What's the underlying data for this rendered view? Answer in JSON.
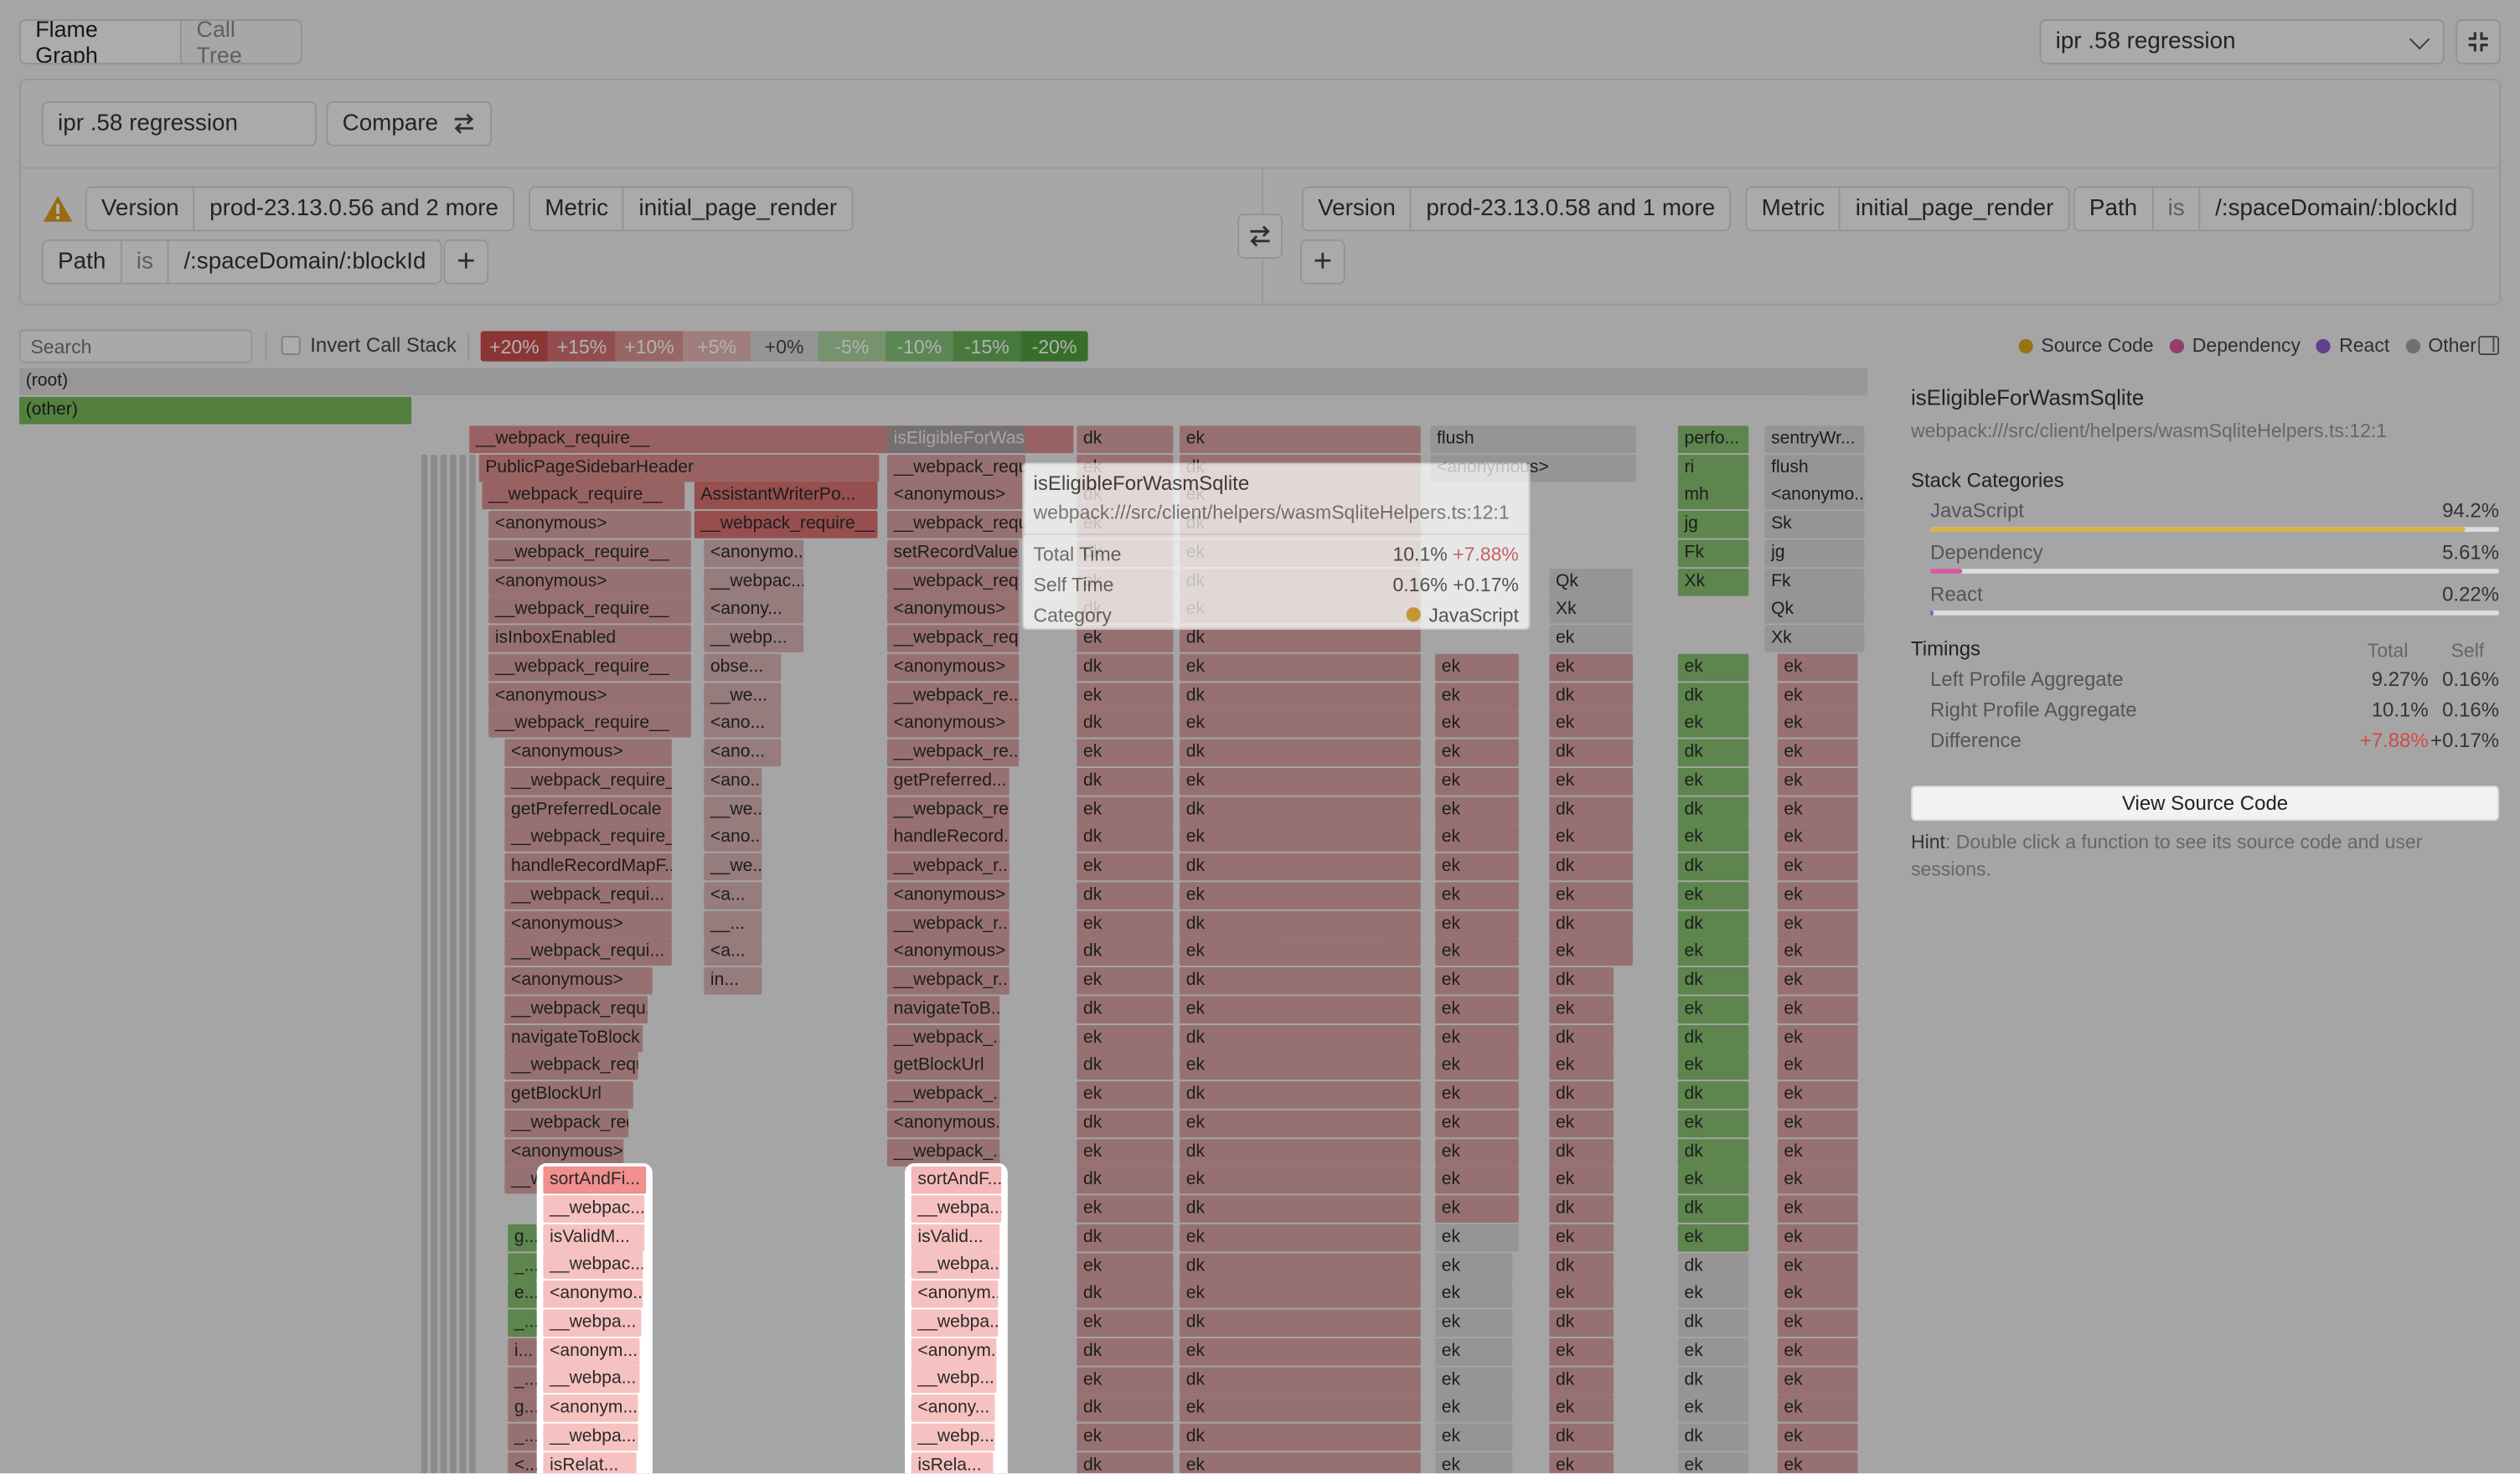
{
  "tabs": {
    "flame_graph": "Flame Graph",
    "call_tree": "Call Tree"
  },
  "header_select": "ipr .58 regression",
  "compare": {
    "name": "ipr .58 regression",
    "button": "Compare"
  },
  "left_filter": {
    "version_key": "Version",
    "version_value": "prod-23.13.0.56 and 2 more",
    "metric_key": "Metric",
    "metric_value": "initial_page_render",
    "path_key": "Path",
    "path_op": "is",
    "path_value": "/:spaceDomain/:blockId"
  },
  "right_filter": {
    "version_key": "Version",
    "version_value": "prod-23.13.0.58 and 1 more",
    "metric_key": "Metric",
    "metric_value": "initial_page_render",
    "path_key": "Path",
    "path_op": "is",
    "path_value": "/:spaceDomain/:blockId"
  },
  "toolbar": {
    "search_placeholder": "Search",
    "invert_label": "Invert Call Stack",
    "scale": [
      {
        "label": "+20%",
        "color": "#c84c4c"
      },
      {
        "label": "+15%",
        "color": "#d27070"
      },
      {
        "label": "+10%",
        "color": "#dc9292"
      },
      {
        "label": "+5%",
        "color": "#e3b6b4"
      },
      {
        "label": "+0%",
        "color": "#d6d6d6"
      },
      {
        "label": "-5%",
        "color": "#a9d1a0"
      },
      {
        "label": "-10%",
        "color": "#86c07a"
      },
      {
        "label": "-15%",
        "color": "#66ae58"
      },
      {
        "label": "-20%",
        "color": "#4f9e40"
      }
    ],
    "legend": [
      {
        "label": "Source Code",
        "color": "#d9a520"
      },
      {
        "label": "Dependency",
        "color": "#d35aa0"
      },
      {
        "label": "React",
        "color": "#8b5cd0"
      },
      {
        "label": "Other",
        "color": "#a0a0a0"
      }
    ]
  },
  "flame": {
    "root": "(root)",
    "other": "(other)",
    "col1": [
      "__webpack_require__",
      "PublicPageSidebarHeader",
      "__webpack_require__",
      "<anonymous>",
      "__webpack_require__",
      "<anonymous>",
      "__webpack_require__",
      "isInboxEnabled",
      "__webpack_require__",
      "<anonymous>",
      "__webpack_require__",
      "<anonymous>",
      "__webpack_require__",
      "getPreferredLocale",
      "__webpack_require__",
      "handleRecordMapF...",
      "__webpack_requi...",
      "<anonymous>",
      "__webpack_requi...",
      "<anonymous>",
      "__webpack_requ...",
      "navigateToBlock",
      "__webpack_requ...",
      "getBlockUrl",
      "__webpack_req...",
      "<anonymous>",
      "__webpack_req..."
    ],
    "col2": [
      "AssistantWriterPo...",
      "__webpack_require__",
      "<anonymo...",
      "__webpac...",
      "<anony...",
      "__webp...",
      "obse...",
      "__we...",
      "<ano...",
      "<ano...",
      "<ano...",
      "__we...",
      "<ano...",
      "__we...",
      "<a...",
      "__...",
      "<a...",
      "in..."
    ],
    "col3": [
      "isEligibleForWasm...",
      "__webpack_requ...",
      "<anonymous>",
      "__webpack_requ...",
      "setRecordValue",
      "__webpack_req...",
      "<anonymous>",
      "__webpack_req...",
      "<anonymous>",
      "__webpack_re...",
      "<anonymous>",
      "__webpack_re...",
      "getPreferred...",
      "__webpack_re...",
      "handleRecord...",
      "__webpack_r...",
      "<anonymous>",
      "__webpack_r...",
      "<anonymous>",
      "__webpack_r...",
      "navigateToB...",
      "__webpack_...",
      "getBlockUrl",
      "__webpack_...",
      "<anonymous...",
      "__webpack_..."
    ],
    "hl1": [
      "sortAndFi...",
      "__webpac...",
      "isValidM...",
      "__webpac...",
      "<anonymo...",
      "__webpa...",
      "<anonym...",
      "__webpa...",
      "<anonym...",
      "__webpa...",
      "isRelat..."
    ],
    "hl1_side": [
      "g...",
      "_...",
      "e...",
      "_...",
      "i...",
      "_...",
      "g...",
      "_...",
      "<...",
      "_...",
      "<..."
    ],
    "hl2": [
      "sortAndF...",
      "__webpa...",
      "isValid...",
      "__webpa...",
      "<anonym...",
      "__webpa...",
      "<anonym...",
      "__webp...",
      "<anony...",
      "__webp...",
      "isRela..."
    ],
    "misc": {
      "dk": "dk",
      "ek": "ek",
      "flush": "flush",
      "anonymous": "<anonymous>",
      "perf": "perfo...",
      "sentry": "sentryWr...",
      "flush2": "flush",
      "anon2": "<anonymo...",
      "ri": "ri",
      "mh": "mh",
      "jg": "jg",
      "Fk": "Fk",
      "Xk": "Xk",
      "Sk": "Sk",
      "Qk": "Qk"
    }
  },
  "tooltip": {
    "title": "isEligibleForWasmSqlite",
    "path": "webpack:///src/client/helpers/wasmSqliteHelpers.ts:12:1",
    "rows": [
      {
        "label": "Total Time",
        "value": "10.1%",
        "delta": "+7.88%"
      },
      {
        "label": "Self Time",
        "value": "0.16%",
        "delta": "+0.17%"
      },
      {
        "label": "Category",
        "value": "JavaScript"
      }
    ]
  },
  "details": {
    "title": "isEligibleForWasmSqlite",
    "path": "webpack:///src/client/helpers/wasmSqliteHelpers.ts:12:1",
    "stack_heading": "Stack Categories",
    "categories": [
      {
        "label": "JavaScript",
        "value": "94.2%",
        "fraction": 0.942,
        "color": "#d9b44a"
      },
      {
        "label": "Dependency",
        "value": "5.61%",
        "fraction": 0.0561,
        "color": "#d35aa0"
      },
      {
        "label": "React",
        "value": "0.22%",
        "fraction": 0.0022,
        "color": "#8b5cd0"
      }
    ],
    "timings_heading": "Timings",
    "col_total": "Total",
    "col_self": "Self",
    "timings": [
      {
        "label": "Left Profile Aggregate",
        "total": "9.27%",
        "self": "0.16%"
      },
      {
        "label": "Right Profile Aggregate",
        "total": "10.1%",
        "self": "0.16%"
      },
      {
        "label": "Difference",
        "total": "+7.88%",
        "self": "+0.17%"
      }
    ],
    "view_source": "View Source Code",
    "hint_bold": "Hint",
    "hint": ": Double click a function to see its source code and user sessions."
  }
}
